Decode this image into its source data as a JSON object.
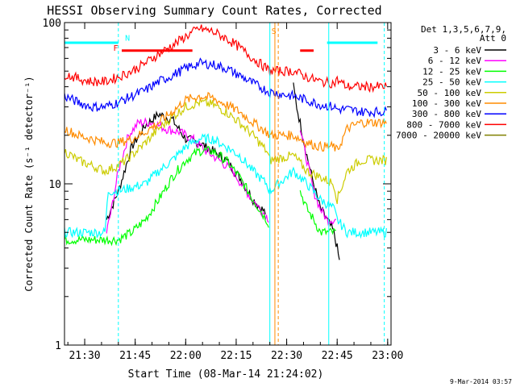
{
  "chart_data": {
    "type": "line",
    "title": "HESSI Observing Summary Count Rates, Corrected",
    "xlabel": "Start Time (08-Mar-14 21:24:02)",
    "ylabel": "Corrected Count Rate (s⁻¹ detector⁻¹)",
    "yscale": "log",
    "ylim": [
      1,
      100
    ],
    "xlim_min": [
      0,
      97
    ],
    "x_ticks": [
      {
        "min": 6,
        "label": "21:30"
      },
      {
        "min": 21,
        "label": "21:45"
      },
      {
        "min": 36,
        "label": "22:00"
      },
      {
        "min": 51,
        "label": "22:15"
      },
      {
        "min": 66,
        "label": "22:30"
      },
      {
        "min": 81,
        "label": "22:45"
      },
      {
        "min": 96,
        "label": "23:00"
      }
    ],
    "y_ticks": [
      {
        "value": 1,
        "label": "1"
      },
      {
        "value": 10,
        "label": "10"
      },
      {
        "value": 100,
        "label": "100"
      }
    ],
    "legend_header": [
      "Det 1,3,5,6,7,9,",
      "Att 0"
    ],
    "series": [
      {
        "name": "3 - 6 keV",
        "color": "#000000",
        "x": [
          12.5,
          16,
          20,
          24,
          28,
          32,
          36,
          40,
          44,
          48,
          52,
          56,
          60,
          61,
          68,
          69,
          72,
          74,
          76,
          78,
          80,
          81,
          82
        ],
        "y": [
          6,
          9,
          17,
          23,
          27,
          25,
          19,
          18,
          16,
          14,
          11,
          8,
          6.5,
          null,
          40,
          30,
          15,
          10,
          7,
          6,
          5,
          4,
          3
        ]
      },
      {
        "name": "6 - 12 keV",
        "color": "#ff00ff",
        "x": [
          12.5,
          14,
          16,
          19,
          22,
          26,
          30,
          34,
          38,
          42,
          46,
          50,
          54,
          58,
          61,
          68,
          70,
          72,
          74,
          76,
          78,
          80,
          81
        ],
        "y": [
          5,
          7,
          12,
          20,
          24,
          24,
          22,
          21,
          19,
          16,
          14,
          12,
          9,
          7,
          6,
          null,
          22,
          14,
          9,
          7,
          6,
          6,
          6
        ]
      },
      {
        "name": "12 - 25 keV",
        "color": "#00ff00",
        "x": [
          0,
          4,
          8,
          12,
          16,
          20,
          24,
          28,
          32,
          36,
          40,
          44,
          48,
          52,
          56,
          60,
          61,
          68,
          70,
          72,
          74,
          76,
          78,
          80,
          81
        ],
        "y": [
          4.5,
          4.5,
          4.5,
          4.5,
          4.5,
          5,
          6,
          8,
          11,
          14,
          16,
          16,
          14,
          11,
          8,
          6,
          5.5,
          null,
          9,
          7,
          6,
          5,
          5,
          5,
          5
        ]
      },
      {
        "name": "25 - 50 keV",
        "color": "#00ffff",
        "x": [
          0,
          4,
          8,
          12,
          13,
          16,
          20,
          24,
          28,
          32,
          36,
          40,
          44,
          48,
          52,
          56,
          60,
          61,
          68,
          72,
          76,
          80,
          81,
          84,
          88,
          92,
          96
        ],
        "y": [
          5,
          5,
          5,
          5,
          9,
          9,
          9.5,
          10,
          12,
          14,
          17,
          19,
          19,
          17,
          15,
          12,
          10,
          9,
          12,
          10,
          8,
          7,
          6,
          5,
          5,
          5,
          5
        ]
      },
      {
        "name": "50 - 100 keV",
        "color": "#cccc00",
        "x": [
          0,
          4,
          8,
          12,
          16,
          20,
          24,
          28,
          32,
          36,
          40,
          44,
          48,
          52,
          56,
          60,
          61,
          68,
          72,
          76,
          80,
          81,
          84,
          88,
          92,
          96
        ],
        "y": [
          16,
          14,
          13,
          12,
          13,
          15,
          18,
          22,
          26,
          30,
          32,
          31,
          28,
          24,
          20,
          16,
          14,
          15,
          12,
          11,
          10,
          8,
          12,
          14,
          14,
          14
        ]
      },
      {
        "name": "100 - 300 keV",
        "color": "#ff8c00",
        "x": [
          0,
          4,
          8,
          12,
          16,
          20,
          24,
          28,
          32,
          36,
          40,
          44,
          48,
          52,
          56,
          60,
          61,
          68,
          72,
          76,
          80,
          81,
          84,
          88,
          92,
          96
        ],
        "y": [
          22,
          20,
          19,
          18,
          18,
          19,
          21,
          24,
          28,
          33,
          35,
          34,
          31,
          28,
          24,
          21,
          20,
          20,
          18,
          17,
          17,
          16,
          22,
          24,
          24,
          24
        ]
      },
      {
        "name": "300 - 800 keV",
        "color": "#0000ff",
        "x": [
          0,
          4,
          8,
          12,
          16,
          20,
          24,
          28,
          32,
          36,
          40,
          44,
          48,
          52,
          56,
          60,
          61,
          68,
          72,
          76,
          80,
          81,
          84,
          88,
          92,
          96
        ],
        "y": [
          35,
          32,
          30,
          30,
          32,
          35,
          38,
          43,
          47,
          52,
          56,
          55,
          52,
          47,
          42,
          38,
          37,
          35,
          33,
          31,
          30,
          29,
          29,
          28,
          28,
          28
        ]
      },
      {
        "name": "800 - 7000 keV",
        "color": "#ff0000",
        "x": [
          0,
          4,
          8,
          12,
          16,
          20,
          24,
          28,
          32,
          36,
          40,
          44,
          48,
          52,
          56,
          60,
          61,
          68,
          72,
          76,
          80,
          81,
          84,
          88,
          92,
          96
        ],
        "y": [
          48,
          45,
          43,
          43,
          46,
          50,
          56,
          64,
          72,
          82,
          92,
          88,
          80,
          70,
          60,
          52,
          50,
          50,
          46,
          43,
          42,
          44,
          40,
          40,
          40,
          40
        ]
      },
      {
        "name": "7000 - 20000 keV",
        "color": "#808000",
        "x": [],
        "y": []
      }
    ],
    "flags": [
      {
        "label": "F",
        "color": "#ff0000"
      },
      {
        "label": "N",
        "color": "#00ffff"
      },
      {
        "label": "S",
        "color": "#ff8c00"
      }
    ],
    "timestamp": "9-Mar-2014 03:57"
  }
}
